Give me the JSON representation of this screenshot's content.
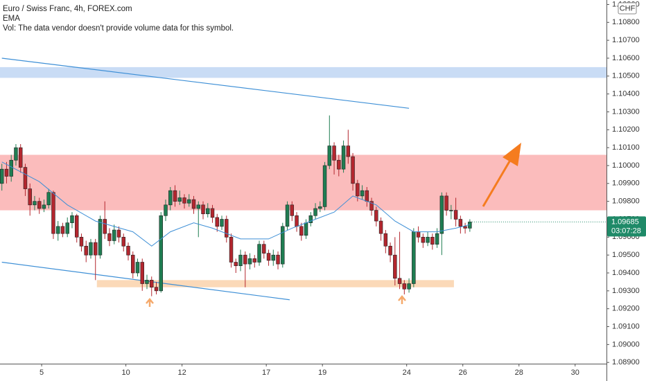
{
  "chart_data": {
    "type": "candlestick",
    "title": "Euro / Swiss Franc, 4h, FOREX.com",
    "indicator_label": "EMA",
    "volume_note": "Vol: The data vendor doesn't provide volume data for this symbol.",
    "currency": "CHF",
    "countdown": "03:07:28",
    "up_color": "#1f7d52",
    "down_color": "#b3262e",
    "xlim": [
      -0.4,
      129.2
    ],
    "xticks": [
      {
        "value": 8.5,
        "label": "5"
      },
      {
        "value": 26.5,
        "label": "10"
      },
      {
        "value": 38.5,
        "label": "12"
      },
      {
        "value": 56.5,
        "label": "17"
      },
      {
        "value": 68.5,
        "label": "19"
      },
      {
        "value": 86.5,
        "label": "24"
      },
      {
        "value": 98.5,
        "label": "26"
      },
      {
        "value": 110.5,
        "label": "28"
      },
      {
        "value": 122.5,
        "label": "30"
      }
    ],
    "ylim": [
      1.08893,
      1.10925
    ],
    "yticks": [
      {
        "value": 1.089,
        "label": "1.08900"
      },
      {
        "value": 1.09,
        "label": "1.09000"
      },
      {
        "value": 1.091,
        "label": "1.09100"
      },
      {
        "value": 1.092,
        "label": "1.09200"
      },
      {
        "value": 1.093,
        "label": "1.09300"
      },
      {
        "value": 1.094,
        "label": "1.09400"
      },
      {
        "value": 1.095,
        "label": "1.09500"
      },
      {
        "value": 1.096,
        "label": "1.09600"
      },
      {
        "value": 1.097,
        "label": "1.09700"
      },
      {
        "value": 1.098,
        "label": "1.09800"
      },
      {
        "value": 1.099,
        "label": "1.09900"
      },
      {
        "value": 1.1,
        "label": "1.10000"
      },
      {
        "value": 1.101,
        "label": "1.10100"
      },
      {
        "value": 1.102,
        "label": "1.10200"
      },
      {
        "value": 1.103,
        "label": "1.10300"
      },
      {
        "value": 1.104,
        "label": "1.10400"
      },
      {
        "value": 1.105,
        "label": "1.10500"
      },
      {
        "value": 1.106,
        "label": "1.10600"
      },
      {
        "value": 1.107,
        "label": "1.10700"
      },
      {
        "value": 1.108,
        "label": "1.10800"
      },
      {
        "value": 1.109,
        "label": "1.10900"
      }
    ],
    "open": [
      1.099,
      1.0998,
      1.0994,
      1.1003,
      1.101,
      1.0999,
      1.0987,
      1.0978,
      1.098,
      1.0976,
      1.0978,
      1.0985,
      1.0962,
      1.0966,
      1.0962,
      1.0968,
      1.0972,
      1.096,
      1.0955,
      1.095,
      1.0957,
      1.095,
      1.097,
      1.0962,
      1.0958,
      1.0964,
      1.096,
      1.0955,
      1.095,
      1.094,
      1.0946,
      1.0934,
      1.0936,
      1.0932,
      1.093,
      1.0972,
      1.0978,
      1.0986,
      1.098,
      1.0982,
      1.0979,
      1.0981,
      1.0976,
      1.0978,
      1.0973,
      1.0976,
      1.0971,
      1.0966,
      1.097,
      1.096,
      1.0946,
      1.0944,
      1.095,
      1.0945,
      1.0948,
      1.0946,
      1.0956,
      1.0951,
      1.0947,
      1.095,
      1.0945,
      1.0966,
      1.0978,
      1.0972,
      1.0966,
      1.0961,
      1.0968,
      1.0972,
      1.0976,
      1.0977,
      1.1,
      1.1011,
      1.1003,
      1.0998,
      1.1011,
      1.1005,
      1.099,
      1.0983,
      1.0986,
      1.098,
      1.0975,
      1.0969,
      1.0962,
      1.0955,
      1.095,
      1.0937,
      1.0934,
      1.0931,
      1.0934,
      1.0963,
      1.096,
      1.0957,
      1.096,
      1.0956,
      1.0962,
      1.0983,
      1.0975,
      1.0975,
      1.097,
      1.0966,
      1.0965
    ],
    "high": [
      1.1001,
      1.1002,
      1.1006,
      1.1012,
      1.1012,
      1.1001,
      1.099,
      1.0983,
      1.0982,
      1.0981,
      1.0987,
      1.0986,
      1.0969,
      1.0968,
      1.0971,
      1.0974,
      1.0973,
      1.0962,
      1.0958,
      1.0959,
      1.0959,
      1.0972,
      1.098,
      1.0965,
      1.0967,
      1.0966,
      1.0962,
      1.0957,
      1.0952,
      1.0948,
      1.0948,
      1.0939,
      1.0938,
      1.0935,
      1.0974,
      1.0981,
      1.0988,
      1.0989,
      1.0986,
      1.0984,
      1.0984,
      1.0983,
      1.098,
      1.098,
      1.0979,
      1.0978,
      1.0973,
      1.0972,
      1.0972,
      1.0962,
      1.0948,
      1.0953,
      1.0952,
      1.0951,
      1.095,
      1.0958,
      1.0958,
      1.0953,
      1.0953,
      1.0952,
      1.0968,
      1.098,
      1.098,
      1.0974,
      1.0968,
      1.097,
      1.0974,
      1.0979,
      1.098,
      1.1002,
      1.1028,
      1.1013,
      1.1006,
      1.1014,
      1.102,
      1.1007,
      1.0992,
      1.0989,
      1.0988,
      1.0982,
      1.0977,
      1.0971,
      1.0964,
      1.0957,
      1.096,
      1.0963,
      1.0936,
      1.0937,
      1.0965,
      1.0966,
      1.0962,
      1.0963,
      1.0962,
      1.0965,
      1.0985,
      1.0985,
      1.0978,
      1.0982,
      1.0972,
      1.0968,
      1.097
    ],
    "low": [
      1.0986,
      1.099,
      1.0991,
      1.1,
      1.0996,
      1.0983,
      1.0972,
      1.0975,
      1.0973,
      1.0974,
      1.0976,
      1.0959,
      1.0958,
      1.096,
      1.096,
      1.0965,
      1.0957,
      1.0952,
      1.0946,
      1.0948,
      1.0936,
      1.0948,
      1.0959,
      1.0955,
      1.0956,
      1.0957,
      1.0952,
      1.0947,
      1.0937,
      1.0938,
      1.093,
      1.0931,
      1.0927,
      1.0928,
      1.0929,
      1.0969,
      1.0975,
      1.0977,
      1.0978,
      1.0976,
      1.0977,
      1.0973,
      1.096,
      1.097,
      1.0971,
      1.0968,
      1.0963,
      1.0964,
      1.0957,
      1.0943,
      1.094,
      1.0941,
      1.0932,
      1.0942,
      1.0943,
      1.0944,
      1.0948,
      1.0944,
      1.0944,
      1.0942,
      1.0943,
      1.0964,
      1.0969,
      1.0963,
      1.0958,
      1.0959,
      1.0966,
      1.097,
      1.0974,
      1.0975,
      1.0998,
      1.0995,
      1.0994,
      1.0996,
      1.1001,
      1.0986,
      1.098,
      1.0981,
      1.0977,
      1.0972,
      1.0966,
      1.0958,
      1.0951,
      1.0946,
      1.0933,
      1.0931,
      1.0928,
      1.0929,
      1.0932,
      1.0957,
      1.0954,
      1.0955,
      1.0953,
      1.0954,
      1.095,
      1.0972,
      1.097,
      1.0966,
      1.0962,
      1.0962,
      1.0963
    ],
    "close": [
      1.0998,
      1.0994,
      1.1003,
      1.101,
      1.0999,
      1.0987,
      1.0978,
      1.098,
      1.0976,
      1.0978,
      1.0985,
      1.0962,
      1.0966,
      1.0962,
      1.0968,
      1.0972,
      1.096,
      1.0955,
      1.095,
      1.0957,
      1.095,
      1.097,
      1.0962,
      1.0958,
      1.0964,
      1.096,
      1.0955,
      1.095,
      1.094,
      1.0946,
      1.0934,
      1.0936,
      1.0932,
      1.093,
      1.0972,
      1.0978,
      1.0986,
      1.098,
      1.0982,
      1.0979,
      1.0981,
      1.0976,
      1.0978,
      1.0973,
      1.0976,
      1.0971,
      1.0966,
      1.097,
      1.096,
      1.0946,
      1.0944,
      1.095,
      1.0945,
      1.0948,
      1.0946,
      1.0956,
      1.0951,
      1.0947,
      1.095,
      1.0945,
      1.0966,
      1.0978,
      1.0972,
      1.0966,
      1.0961,
      1.0968,
      1.0972,
      1.0976,
      1.0977,
      1.1,
      1.1011,
      1.1003,
      1.0998,
      1.1011,
      1.1005,
      1.099,
      1.0983,
      1.0986,
      1.098,
      1.0975,
      1.0969,
      1.0962,
      1.0955,
      1.095,
      1.0937,
      1.0934,
      1.0931,
      1.0934,
      1.0963,
      1.096,
      1.0957,
      1.096,
      1.0956,
      1.0962,
      1.0983,
      1.0975,
      1.0975,
      1.097,
      1.0966,
      1.0965,
      1.09685
    ],
    "ema": {
      "color": "#3d8fd6",
      "x": [
        0,
        8,
        14,
        20,
        28,
        32,
        36,
        41,
        45,
        51,
        57,
        62,
        66,
        71,
        75,
        80,
        84,
        88,
        93,
        97,
        100
      ],
      "values": [
        1.1002,
        1.0991,
        1.0978,
        1.0969,
        1.0963,
        1.0955,
        1.0963,
        1.0968,
        1.0965,
        1.0959,
        1.0959,
        1.0965,
        1.0969,
        1.0974,
        1.0983,
        1.0978,
        1.0969,
        1.0963,
        1.0963,
        1.0965,
        1.0967
      ]
    },
    "zones": [
      {
        "x": [
          -0.4,
          129.2
        ],
        "from": 1.1049,
        "to": 1.1055,
        "color": "#c9dcf5"
      },
      {
        "x": [
          -0.4,
          129.2
        ],
        "from": 1.0975,
        "to": 1.1006,
        "color": "#fbbcbc"
      },
      {
        "x": [
          20.3,
          96.6
        ],
        "from": 1.0932,
        "to": 1.0936,
        "color": "#fbd9b8"
      }
    ],
    "trendlines": [
      {
        "x": [
          0,
          87
        ],
        "values": [
          1.106,
          1.1032
        ],
        "color": "#3d8fd6"
      },
      {
        "x": [
          0,
          61.5
        ],
        "values": [
          1.0946,
          1.0925
        ],
        "color": "#3d8fd6"
      }
    ],
    "price_label_color": "#1f8a68"
  }
}
